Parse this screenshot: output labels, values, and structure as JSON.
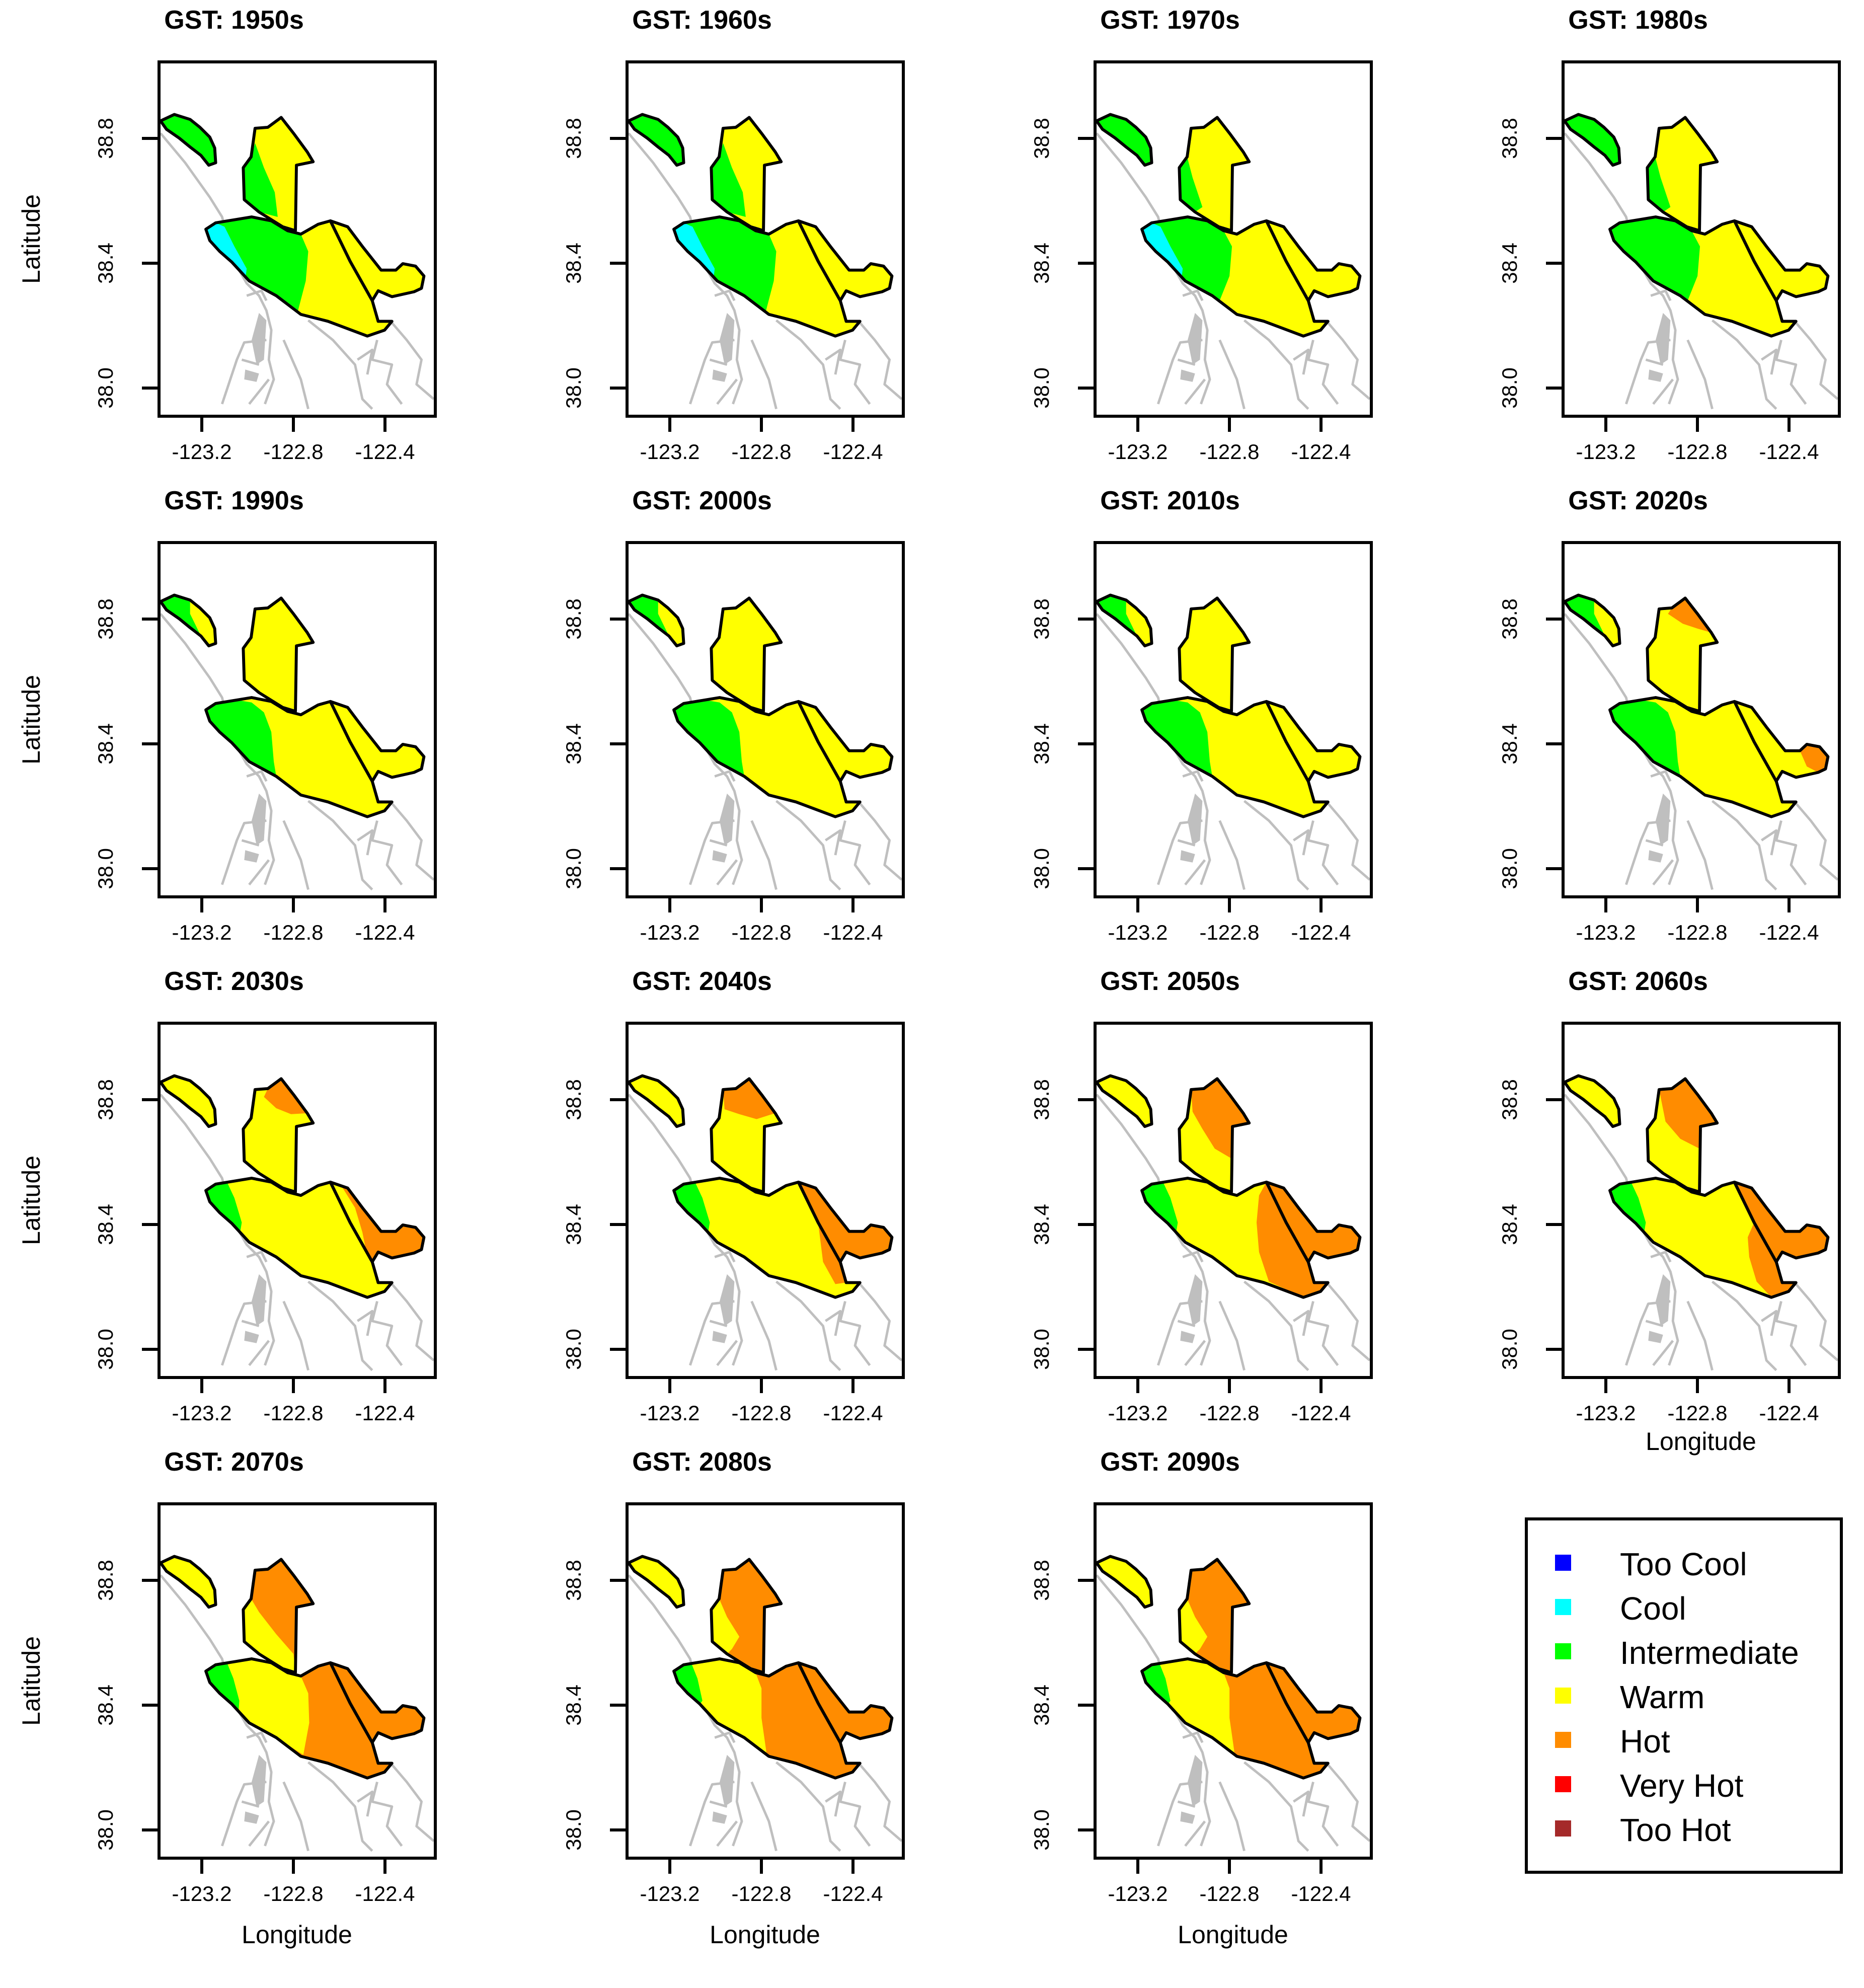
{
  "figure": {
    "y_axis_label": "Latitude",
    "x_axis_label": "Longitude",
    "y_ticks": [
      "38.8",
      "38.4",
      "38.0"
    ],
    "x_ticks": [
      "-123.2",
      "-122.8",
      "-122.4"
    ]
  },
  "panels": [
    {
      "title": "GST: 1950s",
      "decade": 1950
    },
    {
      "title": "GST: 1960s",
      "decade": 1960
    },
    {
      "title": "GST: 1970s",
      "decade": 1970
    },
    {
      "title": "GST: 1980s",
      "decade": 1980
    },
    {
      "title": "GST: 1990s",
      "decade": 1990
    },
    {
      "title": "GST: 2000s",
      "decade": 2000
    },
    {
      "title": "GST: 2010s",
      "decade": 2010
    },
    {
      "title": "GST: 2020s",
      "decade": 2020
    },
    {
      "title": "GST: 2030s",
      "decade": 2030
    },
    {
      "title": "GST: 2040s",
      "decade": 2040
    },
    {
      "title": "GST: 2050s",
      "decade": 2050
    },
    {
      "title": "GST: 2060s",
      "decade": 2060
    },
    {
      "title": "GST: 2070s",
      "decade": 2070
    },
    {
      "title": "GST: 2080s",
      "decade": 2080
    },
    {
      "title": "GST: 2090s",
      "decade": 2090
    }
  ],
  "legend": {
    "items": [
      {
        "label": "Too Cool",
        "color": "#0000ff"
      },
      {
        "label": "Cool",
        "color": "#00ffff"
      },
      {
        "label": "Intermediate",
        "color": "#00ff00"
      },
      {
        "label": "Warm",
        "color": "#ffff00"
      },
      {
        "label": "Hot",
        "color": "#ff8c00"
      },
      {
        "label": "Very Hot",
        "color": "#ff0000"
      },
      {
        "label": "Too Hot",
        "color": "#a52a2a"
      }
    ]
  },
  "colors": {
    "coastline": "#bfbfbf",
    "outline": "#000000",
    "cool": "#00ffff",
    "intermediate": "#00ff00",
    "warm": "#ffff00",
    "hot": "#ff8c00"
  }
}
